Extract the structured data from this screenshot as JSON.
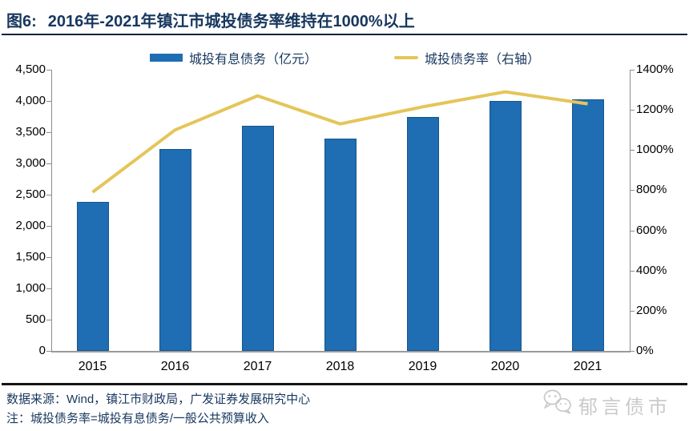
{
  "title": {
    "prefix": "图6:",
    "text": "2016年-2021年镇江市城投债务率维持在1000%以上"
  },
  "legend": [
    {
      "label": "城投有息债务（亿元）",
      "type": "bar",
      "color": "#1F6DB3"
    },
    {
      "label": "城投债务率（右轴）",
      "type": "line",
      "color": "#E5C55A"
    }
  ],
  "chart_data": {
    "type": "bar",
    "subtype": "bar+line combo, dual axis",
    "categories": [
      "2015",
      "2016",
      "2017",
      "2018",
      "2019",
      "2020",
      "2021"
    ],
    "series": [
      {
        "name": "城投有息债务（亿元）",
        "type": "bar",
        "axis": "left",
        "color": "#1F6DB3",
        "values": [
          2390,
          3230,
          3600,
          3400,
          3740,
          4000,
          4030
        ]
      },
      {
        "name": "城投债务率（右轴）",
        "type": "line",
        "axis": "right",
        "color": "#E5C55A",
        "values": [
          790,
          1100,
          1270,
          1130,
          1215,
          1290,
          1230
        ]
      }
    ],
    "left_axis": {
      "min": 0,
      "max": 4500,
      "step": 500,
      "ticks": [
        "4,500",
        "4,000",
        "3,500",
        "3,000",
        "2,500",
        "2,000",
        "1,500",
        "1,000",
        "500",
        "0"
      ]
    },
    "right_axis": {
      "min": 0,
      "max": 1400,
      "step": 200,
      "unit": "%",
      "ticks": [
        "1400%",
        "1200%",
        "1000%",
        "800%",
        "600%",
        "400%",
        "200%",
        "0%"
      ]
    },
    "grid": false,
    "legend_position": "top",
    "title": "图6: 2016年-2021年镇江市城投债务率维持在1000%以上"
  },
  "footer": {
    "source": "数据来源：Wind，镇江市财政局，广发证券发展研究中心",
    "note": "注：城投债务率=城投有息债务/一般公共预算收入"
  },
  "watermark": {
    "label": "郁言债市"
  }
}
